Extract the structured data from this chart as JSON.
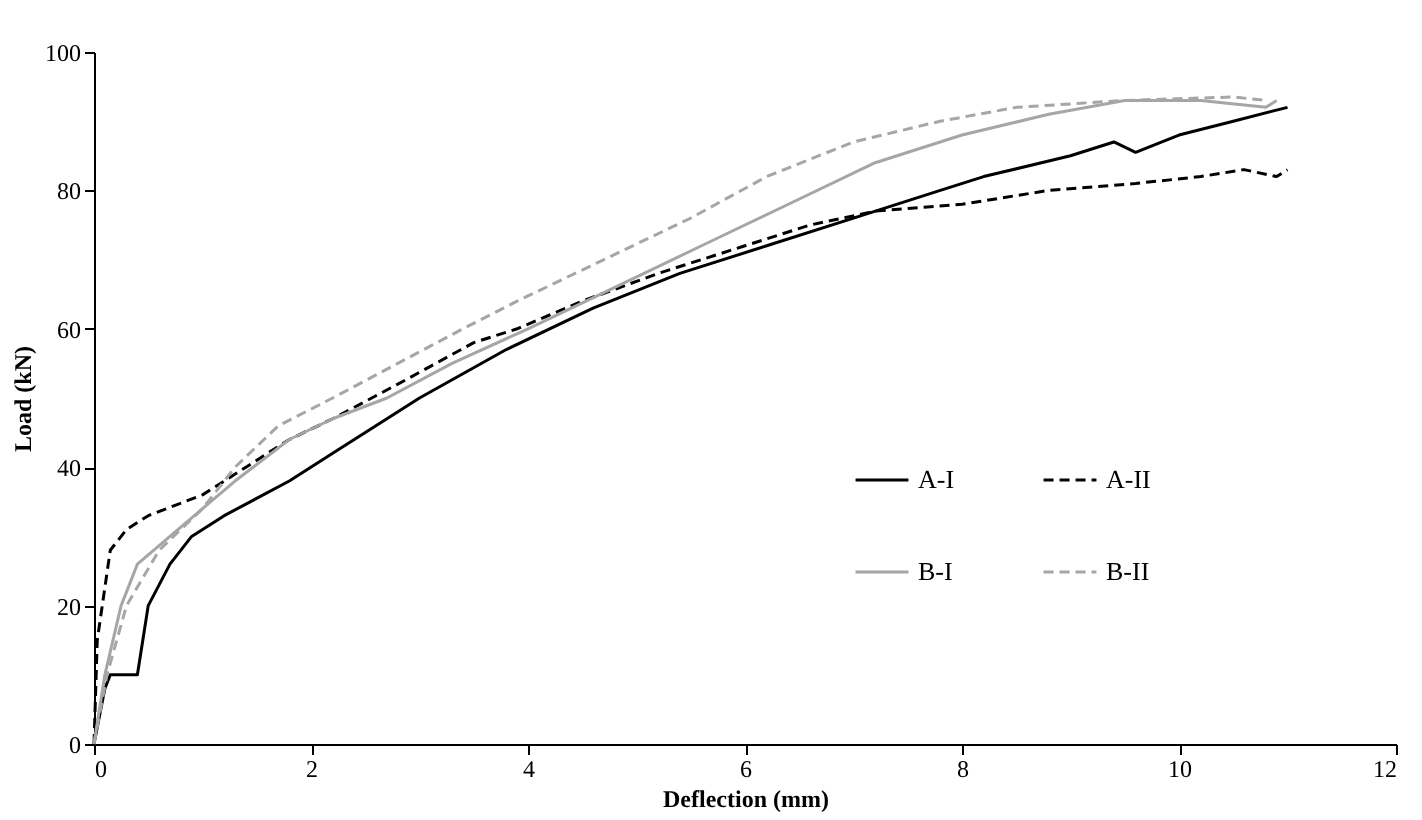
{
  "chart_data": {
    "type": "line",
    "xlabel": "Deflection  (mm)",
    "ylabel": "Load (kN)",
    "xlim": [
      0,
      12
    ],
    "xticks": [
      0,
      2,
      4,
      6,
      8,
      10,
      12
    ],
    "ylim": [
      0,
      100
    ],
    "yticks": [
      0,
      20,
      40,
      60,
      80,
      100
    ],
    "grid": false,
    "legend": "right",
    "marker": "none",
    "series": [
      {
        "name": "A-I",
        "color": "#000000",
        "line_style": "solid",
        "x": [
          0,
          0.1,
          0.15,
          0.4,
          0.5,
          0.7,
          0.9,
          1.2,
          1.8,
          2.2,
          3.0,
          3.8,
          4.6,
          5.4,
          6.2,
          7.0,
          7.8,
          8.2,
          9.0,
          9.4,
          9.6,
          10.0,
          10.5,
          11.0
        ],
        "values": [
          0,
          8,
          10,
          10,
          20,
          26,
          30,
          33,
          38,
          42,
          50,
          57,
          63,
          68,
          72,
          76,
          80,
          82,
          85,
          87,
          85.5,
          88,
          90,
          92
        ]
      },
      {
        "name": "A-II",
        "color": "#000000",
        "line_style": "dashed",
        "x": [
          0,
          0.03,
          0.15,
          0.3,
          0.5,
          1.0,
          1.4,
          1.8,
          2.2,
          2.8,
          3.5,
          3.9,
          4.5,
          5.2,
          6.0,
          6.6,
          7.2,
          8.0,
          8.8,
          9.6,
          10.2,
          10.6,
          10.9,
          11.0
        ],
        "values": [
          0,
          15,
          28,
          31,
          33,
          36,
          40,
          44,
          47,
          52,
          58,
          60,
          64,
          68,
          72,
          75,
          77,
          78,
          80,
          81,
          82,
          83,
          82,
          83
        ]
      },
      {
        "name": "B-I",
        "color": "#a6a6a6",
        "line_style": "solid",
        "x": [
          0,
          0.1,
          0.25,
          0.4,
          0.7,
          1.0,
          1.3,
          1.8,
          2.2,
          2.7,
          3.3,
          4.0,
          4.8,
          5.6,
          6.4,
          7.2,
          8.0,
          8.8,
          9.5,
          10.2,
          10.8,
          10.9
        ],
        "values": [
          0,
          10,
          20,
          26,
          30,
          34,
          38,
          44,
          47,
          50,
          55,
          60,
          66,
          72,
          78,
          84,
          88,
          91,
          93,
          93,
          92,
          93
        ]
      },
      {
        "name": "B-II",
        "color": "#a6a6a6",
        "line_style": "dashed",
        "x": [
          0,
          0.12,
          0.3,
          0.6,
          1.0,
          1.3,
          1.7,
          2.2,
          2.8,
          3.4,
          3.9,
          4.7,
          5.5,
          6.2,
          7.0,
          7.8,
          8.5,
          9.5,
          10.5,
          10.8
        ],
        "values": [
          0,
          10,
          20,
          28,
          34,
          40,
          46,
          50,
          55,
          60,
          64,
          70,
          76,
          82,
          87,
          90,
          92,
          93,
          93.5,
          93
        ]
      }
    ]
  }
}
